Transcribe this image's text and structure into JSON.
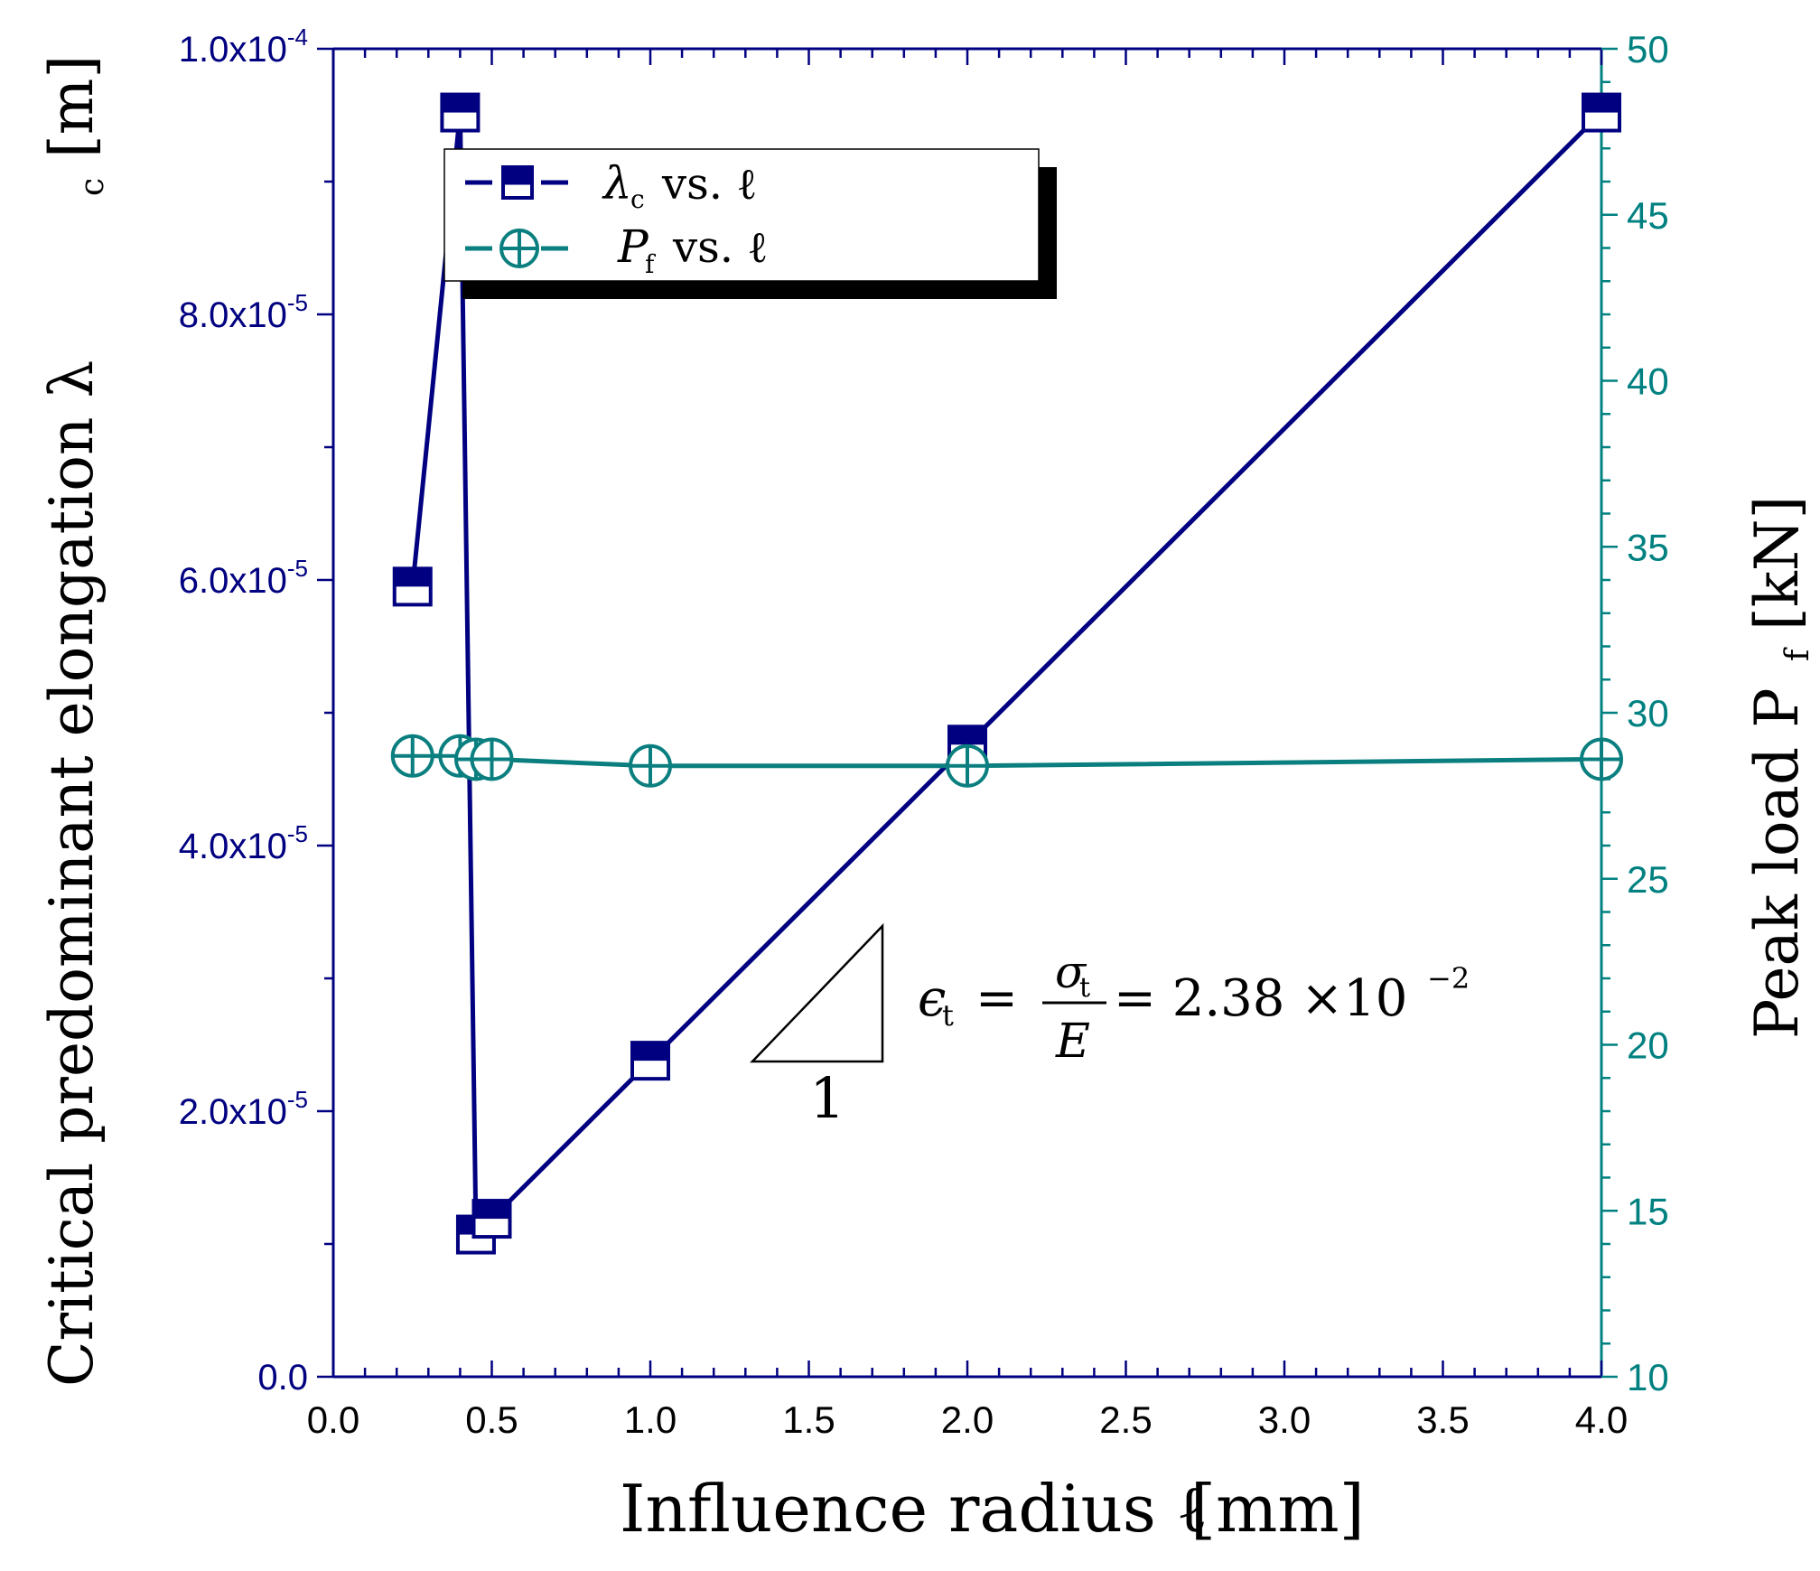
{
  "colors": {
    "left_axis": "#000080",
    "right_axis": "#008080",
    "lambda_series": "#000080",
    "pf_series": "#0b7f7f",
    "frame": "#000080",
    "annotation": "#000000"
  },
  "chart_data": {
    "type": "scatter",
    "title": "",
    "xlabel": "Influence radius ℓ [mm]",
    "ylabel_left": "Critical predominant elongation λc [m]",
    "ylabel_right": "Peak load Pf [kN]",
    "xlim": [
      0.0,
      4.0
    ],
    "ylim_left": [
      0.0,
      0.0001
    ],
    "ylim_right": [
      10,
      50
    ],
    "x_ticks": [
      "0.0",
      "0.5",
      "1.0",
      "1.5",
      "2.0",
      "2.5",
      "3.0",
      "3.5",
      "4.0"
    ],
    "y_left_ticks": [
      {
        "mantissa": "0.0",
        "exp": ""
      },
      {
        "mantissa": "2.0x10",
        "exp": "-5"
      },
      {
        "mantissa": "4.0x10",
        "exp": "-5"
      },
      {
        "mantissa": "6.0x10",
        "exp": "-5"
      },
      {
        "mantissa": "8.0x10",
        "exp": "-5"
      },
      {
        "mantissa": "1.0x10",
        "exp": "-4"
      }
    ],
    "y_right_ticks": [
      "10",
      "15",
      "20",
      "25",
      "30",
      "35",
      "40",
      "45",
      "50"
    ],
    "grid": false,
    "legend_position": "top-left",
    "series": [
      {
        "name": "λc vs. ℓ",
        "axis": "left",
        "marker": "half-filled-square",
        "x": [
          0.25,
          0.4,
          0.45,
          0.5,
          1.0,
          2.0,
          4.0
        ],
        "y": [
          5.95e-05,
          9.52e-05,
          1.071e-05,
          1.19e-05,
          2.38e-05,
          4.76e-05,
          9.52e-05
        ]
      },
      {
        "name": "Pf vs. ℓ",
        "axis": "right",
        "marker": "circle-plus",
        "x": [
          0.25,
          0.4,
          0.45,
          0.5,
          1.0,
          2.0,
          4.0
        ],
        "y": [
          28.7,
          28.7,
          28.6,
          28.6,
          28.4,
          28.4,
          28.6
        ]
      }
    ],
    "annotations": {
      "slope_label": "1",
      "equation_lhs": "ϵ",
      "equation_lhs_sub": "t",
      "equation_num": "σ",
      "equation_num_sub": "t",
      "equation_den": "E",
      "equation_rhs": "= 2.38 ×10",
      "equation_rhs_exp": "−2",
      "equals": "="
    },
    "legend": {
      "entry1_symbol": "λ",
      "entry1_sub": "c",
      "entry1_text": "vs. ℓ",
      "entry2_symbol": "P",
      "entry2_sub": "f",
      "entry2_text": "vs. ℓ"
    },
    "axis_titles": {
      "x_main": "Influence radius ℓ",
      "x_unit": "[mm]",
      "left_main": "Critical predominant elongation λ",
      "left_sub": "c",
      "left_unit": "[m]",
      "right_main": "Peak load P",
      "right_sub": "f",
      "right_unit": "[kN]"
    }
  }
}
